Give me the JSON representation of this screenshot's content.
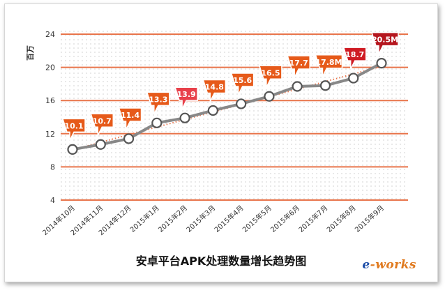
{
  "chart_data": {
    "type": "line",
    "title": "安卓平台APK处理数量增长趋势图",
    "ylabel": "百万",
    "ylim": [
      4,
      24
    ],
    "yticks": [
      4,
      8,
      12,
      16,
      20,
      24
    ],
    "grid": true,
    "categories": [
      "2014年10月",
      "2014年11月",
      "2014年12月",
      "2015年1月",
      "2015年2月",
      "2015年3月",
      "2015年4月",
      "2015年5月",
      "2015年6月",
      "2015年7月",
      "2015年8月",
      "2015年9月"
    ],
    "values": [
      10.1,
      10.7,
      11.4,
      13.3,
      13.9,
      14.8,
      15.6,
      16.5,
      17.7,
      17.8,
      18.7,
      20.5
    ],
    "data_labels": [
      "10.1",
      "10.7",
      "11.4",
      "13.3",
      "13.9",
      "14.8",
      "15.6",
      "16.5",
      "17.7",
      "17.8M",
      "18.7",
      "20.5M"
    ],
    "colors": {
      "line": "#888888",
      "trendline": "#e8734a",
      "marker_fill": "#ffffff",
      "gridline": "#e8744a",
      "label_colors": [
        "#e65a1a",
        "#e65a1a",
        "#e65a1a",
        "#e65a1a",
        "#e8404a",
        "#e65a1a",
        "#e65a1a",
        "#e65a1a",
        "#e65a1a",
        "#e65a1a",
        "#cf1b23",
        "#b5161e"
      ]
    }
  },
  "watermark": {
    "prefix": "e",
    "suffix": "-works"
  }
}
